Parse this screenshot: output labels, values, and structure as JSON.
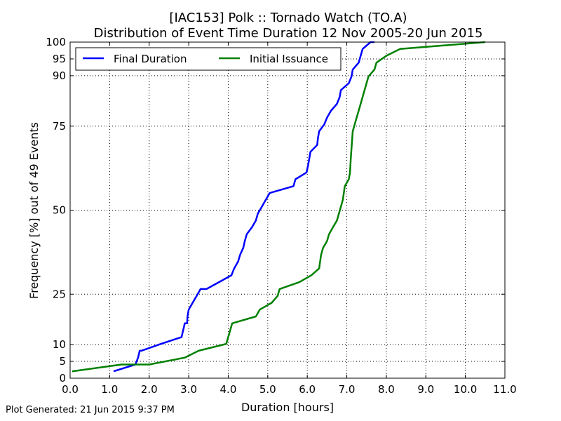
{
  "chart_data": {
    "type": "line",
    "title": [
      "[IAC153] Polk :: Tornado Watch (TO.A)",
      "Distribution of Event Time Duration 12 Nov 2005-20 Jun 2015"
    ],
    "xlabel": "Duration [hours]",
    "ylabel": "Frequency [%] out of 49 Events",
    "xlim": [
      0,
      11
    ],
    "ylim": [
      0,
      100
    ],
    "x_ticks": [
      0,
      1,
      2,
      3,
      4,
      5,
      6,
      7,
      8,
      9,
      10,
      11
    ],
    "x_tick_labels": [
      "0.0",
      "1.0",
      "2.0",
      "3.0",
      "4.0",
      "5.0",
      "6.0",
      "7.0",
      "8.0",
      "9.0",
      "10.0",
      "11.0"
    ],
    "y_ticks": [
      0,
      5,
      10,
      25,
      50,
      75,
      90,
      95,
      100
    ],
    "y_tick_labels": [
      "0",
      "5",
      "10",
      "25",
      "50",
      "75",
      "90",
      "95",
      "100"
    ],
    "grid": true,
    "legend_position": "top-left",
    "series": [
      {
        "name": "Final Duration",
        "color": "#0000ff",
        "x": [
          1.1,
          1.65,
          1.72,
          1.76,
          1.8,
          2.3,
          2.82,
          2.86,
          2.9,
          2.96,
          2.97,
          3.0,
          3.1,
          3.2,
          3.3,
          3.45,
          4.08,
          4.15,
          4.25,
          4.3,
          4.38,
          4.42,
          4.47,
          4.6,
          4.7,
          4.75,
          4.85,
          4.95,
          5.05,
          5.65,
          5.7,
          5.98,
          6.02,
          6.08,
          6.25,
          6.27,
          6.3,
          6.43,
          6.5,
          6.6,
          6.75,
          6.82,
          6.85,
          7.05,
          7.12,
          7.15,
          7.3,
          7.35,
          7.4,
          7.6,
          7.7
        ],
        "y": [
          2.04,
          4.08,
          6.12,
          8.16,
          8.16,
          10.2,
          12.24,
          14.29,
          16.33,
          16.33,
          18.37,
          20.41,
          22.45,
          24.49,
          26.53,
          26.53,
          30.61,
          32.65,
          34.69,
          36.73,
          38.78,
          40.82,
          42.86,
          44.9,
          46.94,
          48.98,
          51.02,
          53.06,
          55.1,
          57.14,
          59.18,
          61.22,
          63.27,
          67.35,
          69.39,
          71.43,
          73.47,
          75.51,
          77.55,
          79.59,
          81.63,
          83.67,
          85.71,
          87.76,
          89.8,
          91.84,
          93.88,
          95.92,
          97.96,
          100,
          100
        ]
      },
      {
        "name": "Initial Issuance",
        "color": "#008000",
        "x": [
          0.05,
          1.3,
          2.0,
          2.9,
          3.25,
          3.95,
          4.05,
          4.1,
          4.7,
          4.8,
          5.1,
          5.25,
          5.3,
          5.8,
          6.1,
          6.3,
          6.35,
          6.4,
          6.5,
          6.55,
          6.65,
          6.75,
          6.8,
          6.85,
          6.9,
          6.95,
          7.05,
          7.08,
          7.1,
          7.15,
          7.2,
          7.25,
          7.3,
          7.35,
          7.4,
          7.45,
          7.5,
          7.55,
          7.7,
          7.75,
          8.0,
          8.35,
          10.5
        ],
        "y": [
          2.04,
          4.08,
          4.08,
          6.12,
          8.16,
          10.2,
          14.29,
          16.33,
          18.37,
          20.41,
          22.45,
          24.49,
          26.53,
          28.57,
          30.61,
          32.65,
          36.73,
          38.78,
          40.82,
          42.86,
          44.9,
          46.94,
          48.98,
          51.02,
          53.06,
          57.14,
          59.18,
          61.22,
          65.31,
          73.47,
          75.51,
          77.55,
          79.59,
          81.63,
          83.67,
          85.71,
          87.76,
          89.8,
          91.84,
          93.88,
          95.92,
          97.96,
          100
        ]
      }
    ]
  },
  "footer": {
    "generated": "Plot Generated: 21 Jun 2015 9:37 PM"
  }
}
